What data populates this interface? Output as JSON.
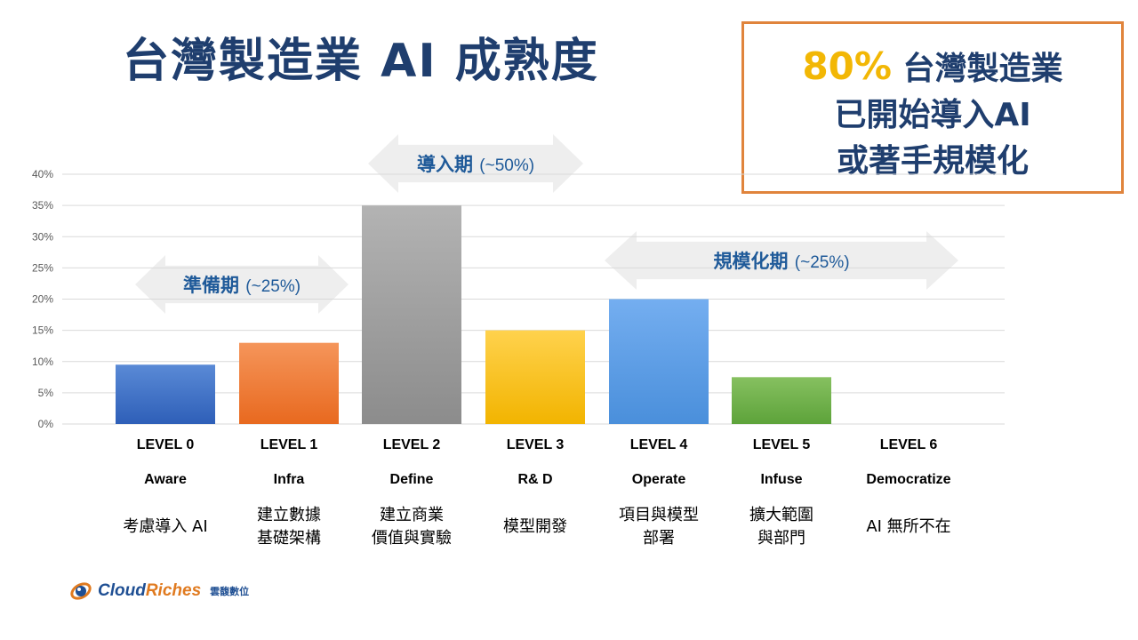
{
  "title": "台灣製造業 AI 成熟度",
  "callout": {
    "highlight": "80%",
    "line1_rest": " 台灣製造業",
    "line2": "已開始導入AI",
    "line3": "或著手規模化"
  },
  "colors": {
    "title": "#1f3e6e",
    "highlight": "#f2b705",
    "callout_border": "#e0843c",
    "phase_text": "#1f5a99",
    "arrow": "#eeeeee"
  },
  "phases": [
    {
      "label": "準備期",
      "sub": "(~25%)"
    },
    {
      "label": "導入期",
      "sub": "(~50%)"
    },
    {
      "label": "規模化期",
      "sub": "(~25%)"
    }
  ],
  "chart_data": {
    "type": "bar",
    "categories": [
      "LEVEL 0",
      "LEVEL 1",
      "LEVEL 2",
      "LEVEL 3",
      "LEVEL 4",
      "LEVEL 5",
      "LEVEL 6"
    ],
    "stage_names": [
      "Aware",
      "Infra",
      "Define",
      "R& D",
      "Operate",
      "Infuse",
      "Democratize"
    ],
    "descriptions": [
      [
        "考慮導入 AI"
      ],
      [
        "建立數據",
        "基礎架構"
      ],
      [
        "建立商業",
        "價值與實驗"
      ],
      [
        "模型開發"
      ],
      [
        "項目與模型",
        "部署"
      ],
      [
        "擴大範圍",
        "與部門"
      ],
      [
        "AI 無所不在"
      ]
    ],
    "values": [
      9.5,
      13,
      35,
      15,
      20,
      7.5,
      0
    ],
    "bar_colors": [
      [
        "#5a8ad6",
        "#2e5fb8"
      ],
      [
        "#f5955a",
        "#e8691f"
      ],
      [
        "#b3b3b3",
        "#8c8c8c"
      ],
      [
        "#ffd24d",
        "#f2b400"
      ],
      [
        "#74aef0",
        "#4a8fdb"
      ],
      [
        "#86c060",
        "#5da33a"
      ],
      [
        "#cccccc",
        "#aaaaaa"
      ]
    ],
    "ylim": [
      0,
      40
    ],
    "yticks": [
      "0%",
      "5%",
      "10%",
      "15%",
      "20%",
      "25%",
      "30%",
      "35%",
      "40%"
    ],
    "grid": true,
    "title": "",
    "xlabel": "",
    "ylabel": ""
  },
  "logo": {
    "brand_a": "Cloud",
    "brand_b": "Riches",
    "tagline": "雲馥數位"
  }
}
